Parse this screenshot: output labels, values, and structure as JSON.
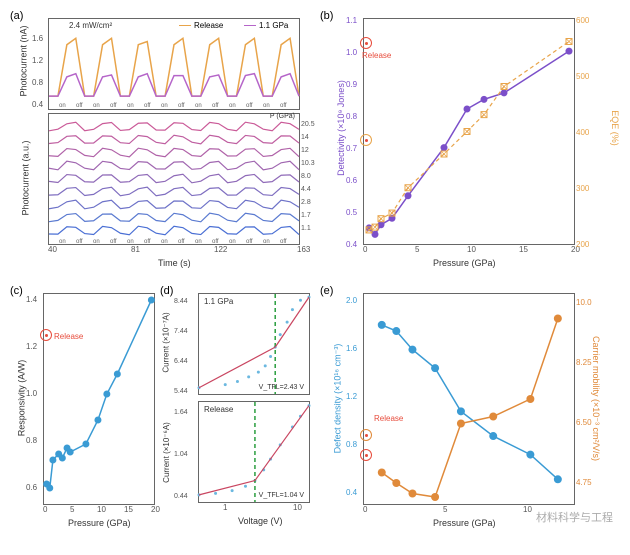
{
  "panels": {
    "a": "(a)",
    "b": "(b)",
    "c": "(c)",
    "d": "(d)",
    "e": "(e)"
  },
  "a_top": {
    "power_anno": "2.4 mW/cm²",
    "legend": {
      "release": "Release",
      "release_color": "#e8a44a",
      "p11": "1.1 GPa",
      "p11_color": "#b565c9"
    },
    "ylabel": "Photocurrent (nA)",
    "ytick": [
      "0.4",
      "0.8",
      "1.2",
      "1.6"
    ],
    "onoff": [
      "on",
      "off",
      "on",
      "off",
      "on",
      "off",
      "on",
      "off",
      "on",
      "off",
      "on",
      "off",
      "on",
      "off"
    ],
    "release_wave": [
      0.4,
      0.4,
      1.2,
      1.3,
      0.4,
      0.4,
      1.2,
      1.3,
      0.4,
      0.4,
      1.2,
      1.25,
      0.4,
      0.4,
      1.2,
      1.3,
      0.4,
      0.4,
      1.2,
      1.3,
      0.4,
      0.4,
      1.2,
      1.3,
      0.4,
      0.4,
      1.2,
      1.3,
      0.4
    ],
    "p11_wave": [
      0.4,
      0.4,
      0.7,
      0.75,
      0.4,
      0.4,
      0.7,
      0.73,
      0.4,
      0.4,
      0.7,
      0.75,
      0.4,
      0.4,
      0.72,
      0.72,
      0.4,
      0.4,
      0.7,
      0.73,
      0.4,
      0.4,
      0.72,
      0.75,
      0.4,
      0.4,
      0.7,
      0.75,
      0.4
    ]
  },
  "a_bot": {
    "ylabel": "Photocurrent (a.u.)",
    "xlabel": "Time (s)",
    "xtick": [
      "40",
      "81",
      "122",
      "163"
    ],
    "p_label": "P (GPa)",
    "pressures": [
      "20.5",
      "14",
      "12",
      "10.3",
      "8.0",
      "4.4",
      "2.8",
      "1.7",
      "1.1"
    ],
    "colors": [
      "#4a6fd4",
      "#5a7ad0",
      "#6d72c8",
      "#7f6ec0",
      "#8f6ab8",
      "#a066b0",
      "#b062a8",
      "#bf5ea0",
      "#ca5a98"
    ],
    "onoff": [
      "on",
      "off",
      "on",
      "off",
      "on",
      "off",
      "on",
      "off",
      "on",
      "off",
      "on",
      "off",
      "on",
      "off"
    ]
  },
  "b": {
    "ylabel_l": "Detectivity (×10⁹ Jones)",
    "ylabel_r": "EQE (%)",
    "xlabel": "Pressure (GPa)",
    "xtick": [
      "0",
      "5",
      "10",
      "15",
      "20"
    ],
    "ytick_l": [
      "0.4",
      "0.5",
      "0.6",
      "0.7",
      "0.8",
      "0.9",
      "1.0",
      "1.1"
    ],
    "ytick_r": [
      "200",
      "300",
      "400",
      "500",
      "600"
    ],
    "det_color": "#7b4fc9",
    "det_solid": true,
    "eqe_color": "#e8a44a",
    "eqe_dash": true,
    "release_label": "Release",
    "det_points": [
      [
        0.5,
        0.45
      ],
      [
        1.1,
        0.43
      ],
      [
        1.7,
        0.46
      ],
      [
        2.8,
        0.48
      ],
      [
        4.4,
        0.55
      ],
      [
        8,
        0.7
      ],
      [
        10.3,
        0.82
      ],
      [
        12,
        0.85
      ],
      [
        14,
        0.87
      ],
      [
        20.5,
        1.0
      ]
    ],
    "eqe_points": [
      [
        0.5,
        225
      ],
      [
        1.1,
        230
      ],
      [
        1.7,
        245
      ],
      [
        2.8,
        255
      ],
      [
        4.4,
        300
      ],
      [
        8,
        360
      ],
      [
        10.3,
        400
      ],
      [
        12,
        430
      ],
      [
        14,
        480
      ],
      [
        20.5,
        560
      ]
    ],
    "release_det": [
      0,
      0.95
    ],
    "release_eqe": [
      0,
      350
    ]
  },
  "c": {
    "ylabel": "Responsivity (A/W)",
    "xlabel": "Pressure (GPa)",
    "xtick": [
      "0",
      "5",
      "10",
      "15",
      "20"
    ],
    "ytick": [
      "0.6",
      "0.8",
      "1.0",
      "1.2",
      "1.4"
    ],
    "color": "#3a9bd4",
    "release_label": "Release",
    "points": [
      [
        0.5,
        0.6
      ],
      [
        1.1,
        0.58
      ],
      [
        1.7,
        0.72
      ],
      [
        2.8,
        0.75
      ],
      [
        3.5,
        0.73
      ],
      [
        4.4,
        0.78
      ],
      [
        5,
        0.76
      ],
      [
        8,
        0.8
      ],
      [
        10.3,
        0.92
      ],
      [
        12,
        1.05
      ],
      [
        14,
        1.15
      ],
      [
        20.5,
        1.52
      ]
    ],
    "release_pt": [
      0,
      1.28
    ]
  },
  "d_top": {
    "anno": "1.1 GPa",
    "v_anno": "V_TFL=2.43 V",
    "ylabel": "Current (×10⁻⁷A)",
    "ytick": [
      "5.44",
      "6.44",
      "7.44",
      "8.44"
    ],
    "scatter_color": "#6bb8e0",
    "fit_color": "#c94560",
    "vline_x": 2.43,
    "vline_color": "#2a9d3f",
    "scatter": [
      [
        0.1,
        5.5
      ],
      [
        0.3,
        5.6
      ],
      [
        0.5,
        5.7
      ],
      [
        0.8,
        5.85
      ],
      [
        1.2,
        6.0
      ],
      [
        1.6,
        6.2
      ],
      [
        2.0,
        6.5
      ],
      [
        2.43,
        6.8
      ],
      [
        3,
        7.2
      ],
      [
        4,
        7.6
      ],
      [
        5,
        8.0
      ],
      [
        7,
        8.3
      ],
      [
        10,
        8.4
      ]
    ]
  },
  "d_bot": {
    "anno": "Release",
    "v_anno": "V_TFL=1.04 V",
    "ylabel": "Current (×10⁻⁶A)",
    "xlabel": "Voltage (V)",
    "xtick": [
      "1",
      "10"
    ],
    "ytick": [
      "0.44",
      "1.04",
      "1.64"
    ],
    "scatter_color": "#6bb8e0",
    "fit_color": "#c94560",
    "vline_x": 1.04,
    "vline_color": "#2a9d3f",
    "scatter": [
      [
        0.1,
        0.4
      ],
      [
        0.2,
        0.42
      ],
      [
        0.4,
        0.46
      ],
      [
        0.7,
        0.52
      ],
      [
        1.04,
        0.6
      ],
      [
        1.5,
        0.75
      ],
      [
        2,
        0.9
      ],
      [
        3,
        1.1
      ],
      [
        5,
        1.35
      ],
      [
        7,
        1.5
      ],
      [
        10,
        1.65
      ]
    ]
  },
  "e": {
    "ylabel_l": "Defect density (×10¹⁶ cm⁻³)",
    "ylabel_r": "Carrier mobility (×10⁻³ cm²/V/s)",
    "xlabel": "Pressure (GPa)",
    "xtick": [
      "0",
      "5",
      "10"
    ],
    "ytick_l": [
      "0.4",
      "0.8",
      "1.2",
      "1.6",
      "2.0"
    ],
    "ytick_r": [
      "4.75",
      "6.50",
      "8.25",
      "10.0"
    ],
    "def_color": "#3a9bd4",
    "mob_color": "#e08a3a",
    "release_label": "Release",
    "def_points": [
      [
        1.1,
        1.75
      ],
      [
        2,
        1.7
      ],
      [
        3,
        1.55
      ],
      [
        4.4,
        1.4
      ],
      [
        6,
        1.05
      ],
      [
        8,
        0.85
      ],
      [
        10.3,
        0.7
      ],
      [
        12,
        0.5
      ]
    ],
    "mob_points": [
      [
        1.1,
        4.9
      ],
      [
        2,
        4.6
      ],
      [
        3,
        4.3
      ],
      [
        4.4,
        4.2
      ],
      [
        6,
        6.3
      ],
      [
        8,
        6.5
      ],
      [
        10.3,
        7.0
      ],
      [
        12,
        9.3
      ]
    ],
    "release_def": [
      0,
      0.6
    ],
    "release_mob": [
      0,
      1.05
    ]
  },
  "watermark": "材料科学与工程"
}
